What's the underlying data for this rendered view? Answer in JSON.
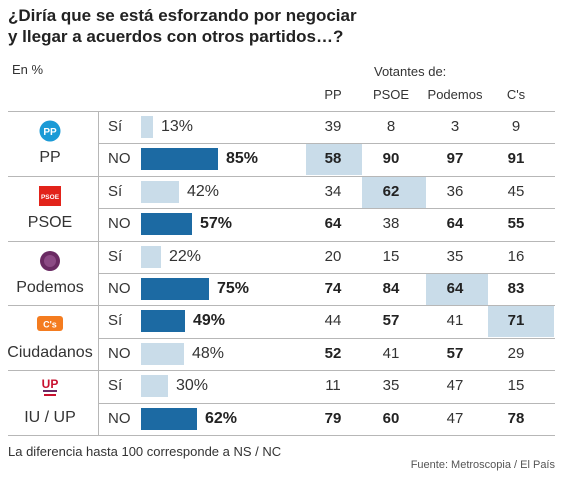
{
  "title": {
    "line1": "¿Diría que se está esforzando por negociar",
    "line2": "y llegar a acuerdos con otros partidos…?"
  },
  "unit_label": "En %",
  "voters_label": "Votantes de:",
  "columns": [
    "PP",
    "PSOE",
    "Podemos",
    "C's"
  ],
  "footnote": "La diferencia hasta 100 corresponde a NS / NC",
  "source": "Fuente: Metroscopia / El País",
  "colors": {
    "bar_no": "#1c6aa3",
    "bar_si": "#c9dce9",
    "highlight": "#c9dce9",
    "grid": "#b7b7b7"
  },
  "chart_data": {
    "type": "table",
    "title": "¿Diría que se está esforzando por negociar y llegar a acuerdos con otros partidos…?",
    "unit": "En %",
    "parties": [
      {
        "name": "PP",
        "icon": "pp-logo-icon",
        "logo_text": "PP",
        "rows": [
          {
            "label": "Sí",
            "value": 13,
            "pct": "13%",
            "dark": false,
            "bold": false,
            "cells": [
              {
                "v": "39",
                "b": false,
                "h": false
              },
              {
                "v": "8",
                "b": false,
                "h": false
              },
              {
                "v": "3",
                "b": false,
                "h": false
              },
              {
                "v": "9",
                "b": false,
                "h": false
              }
            ]
          },
          {
            "label": "NO",
            "value": 85,
            "pct": "85%",
            "dark": true,
            "bold": true,
            "cells": [
              {
                "v": "58",
                "b": true,
                "h": true
              },
              {
                "v": "90",
                "b": true,
                "h": false
              },
              {
                "v": "97",
                "b": true,
                "h": false
              },
              {
                "v": "91",
                "b": true,
                "h": false
              }
            ]
          }
        ]
      },
      {
        "name": "PSOE",
        "icon": "psoe-logo-icon",
        "logo_text": "PSOE",
        "rows": [
          {
            "label": "Sí",
            "value": 42,
            "pct": "42%",
            "dark": false,
            "bold": false,
            "cells": [
              {
                "v": "34",
                "b": false,
                "h": false
              },
              {
                "v": "62",
                "b": true,
                "h": true
              },
              {
                "v": "36",
                "b": false,
                "h": false
              },
              {
                "v": "45",
                "b": false,
                "h": false
              }
            ]
          },
          {
            "label": "NO",
            "value": 57,
            "pct": "57%",
            "dark": true,
            "bold": true,
            "cells": [
              {
                "v": "64",
                "b": true,
                "h": false
              },
              {
                "v": "38",
                "b": false,
                "h": false
              },
              {
                "v": "64",
                "b": true,
                "h": false
              },
              {
                "v": "55",
                "b": true,
                "h": false
              }
            ]
          }
        ]
      },
      {
        "name": "Podemos",
        "icon": "podemos-logo-icon",
        "logo_text": "",
        "rows": [
          {
            "label": "Sí",
            "value": 22,
            "pct": "22%",
            "dark": false,
            "bold": false,
            "cells": [
              {
                "v": "20",
                "b": false,
                "h": false
              },
              {
                "v": "15",
                "b": false,
                "h": false
              },
              {
                "v": "35",
                "b": false,
                "h": false
              },
              {
                "v": "16",
                "b": false,
                "h": false
              }
            ]
          },
          {
            "label": "NO",
            "value": 75,
            "pct": "75%",
            "dark": true,
            "bold": true,
            "cells": [
              {
                "v": "74",
                "b": true,
                "h": false
              },
              {
                "v": "84",
                "b": true,
                "h": false
              },
              {
                "v": "64",
                "b": true,
                "h": true
              },
              {
                "v": "83",
                "b": true,
                "h": false
              }
            ]
          }
        ]
      },
      {
        "name": "Ciudadanos",
        "icon": "cs-logo-icon",
        "logo_text": "C's",
        "rows": [
          {
            "label": "Sí",
            "value": 49,
            "pct": "49%",
            "dark": true,
            "bold": true,
            "cells": [
              {
                "v": "44",
                "b": false,
                "h": false
              },
              {
                "v": "57",
                "b": true,
                "h": false
              },
              {
                "v": "41",
                "b": false,
                "h": false
              },
              {
                "v": "71",
                "b": true,
                "h": true
              }
            ]
          },
          {
            "label": "NO",
            "value": 48,
            "pct": "48%",
            "dark": false,
            "bold": false,
            "cells": [
              {
                "v": "52",
                "b": true,
                "h": false
              },
              {
                "v": "41",
                "b": false,
                "h": false
              },
              {
                "v": "57",
                "b": true,
                "h": false
              },
              {
                "v": "29",
                "b": false,
                "h": false
              }
            ]
          }
        ]
      },
      {
        "name": "IU / UP",
        "icon": "up-logo-icon",
        "logo_text": "UP",
        "rows": [
          {
            "label": "Sí",
            "value": 30,
            "pct": "30%",
            "dark": false,
            "bold": false,
            "cells": [
              {
                "v": "11",
                "b": false,
                "h": false
              },
              {
                "v": "35",
                "b": false,
                "h": false
              },
              {
                "v": "47",
                "b": false,
                "h": false
              },
              {
                "v": "15",
                "b": false,
                "h": false
              }
            ]
          },
          {
            "label": "NO",
            "value": 62,
            "pct": "62%",
            "dark": true,
            "bold": true,
            "cells": [
              {
                "v": "79",
                "b": true,
                "h": false
              },
              {
                "v": "60",
                "b": true,
                "h": false
              },
              {
                "v": "47",
                "b": false,
                "h": false
              },
              {
                "v": "78",
                "b": true,
                "h": false
              }
            ]
          }
        ]
      }
    ]
  }
}
